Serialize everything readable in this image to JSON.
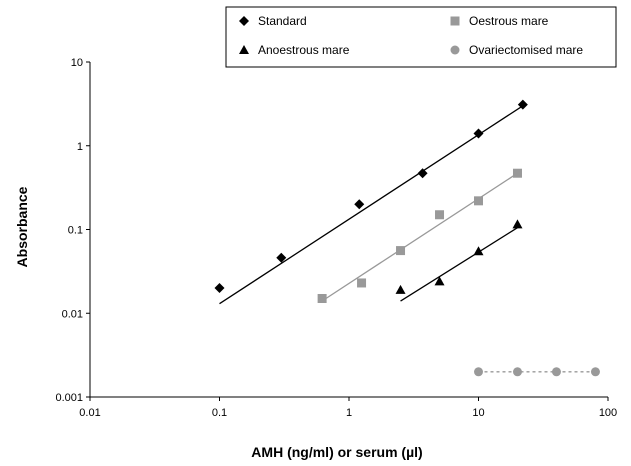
{
  "chart_data": {
    "type": "scatter",
    "xlabel": "AMH (ng/ml) or serum (µl)",
    "ylabel": "Absorbance",
    "xscale": "log",
    "yscale": "log",
    "xlim": [
      0.01,
      100
    ],
    "ylim": [
      0.001,
      10
    ],
    "x_ticks": [
      0.01,
      0.1,
      1,
      10,
      100
    ],
    "x_tick_labels": [
      "0.01",
      "0.1",
      "1",
      "10",
      "100"
    ],
    "y_ticks": [
      0.001,
      0.01,
      0.1,
      1,
      10
    ],
    "y_tick_labels": [
      "0.001",
      "0.01",
      "0.1",
      "1",
      "10"
    ],
    "legend_position": "top-right",
    "series": [
      {
        "name": "Standard",
        "marker": "diamond",
        "color": "#000000",
        "points": [
          [
            0.1,
            0.02
          ],
          [
            0.3,
            0.046
          ],
          [
            1.2,
            0.2
          ],
          [
            3.7,
            0.47
          ],
          [
            10,
            1.4
          ],
          [
            22,
            3.1
          ]
        ],
        "trendline": {
          "from": [
            0.1,
            0.013
          ],
          "to": [
            22,
            3.0
          ],
          "style": "solid",
          "color": "#000000"
        }
      },
      {
        "name": "Oestrous mare",
        "marker": "square",
        "color": "#999999",
        "points": [
          [
            0.62,
            0.015
          ],
          [
            1.25,
            0.023
          ],
          [
            2.5,
            0.056
          ],
          [
            5,
            0.15
          ],
          [
            10,
            0.22
          ],
          [
            20,
            0.47
          ]
        ],
        "trendline": {
          "from": [
            0.62,
            0.014
          ],
          "to": [
            20,
            0.47
          ],
          "style": "solid",
          "color": "#999999"
        }
      },
      {
        "name": "Anoestrous mare",
        "marker": "triangle",
        "color": "#000000",
        "points": [
          [
            2.5,
            0.019
          ],
          [
            5,
            0.024
          ],
          [
            10,
            0.055
          ],
          [
            20,
            0.115
          ]
        ],
        "trendline": {
          "from": [
            2.5,
            0.014
          ],
          "to": [
            20,
            0.105
          ],
          "style": "solid",
          "color": "#000000"
        }
      },
      {
        "name": "Ovariectomised mare",
        "marker": "circle",
        "color": "#999999",
        "points": [
          [
            10,
            0.002
          ],
          [
            20,
            0.002
          ],
          [
            40,
            0.002
          ],
          [
            80,
            0.002
          ]
        ],
        "trendline": {
          "from": [
            10,
            0.002
          ],
          "to": [
            80,
            0.002
          ],
          "style": "dashed",
          "color": "#999999"
        }
      }
    ]
  }
}
